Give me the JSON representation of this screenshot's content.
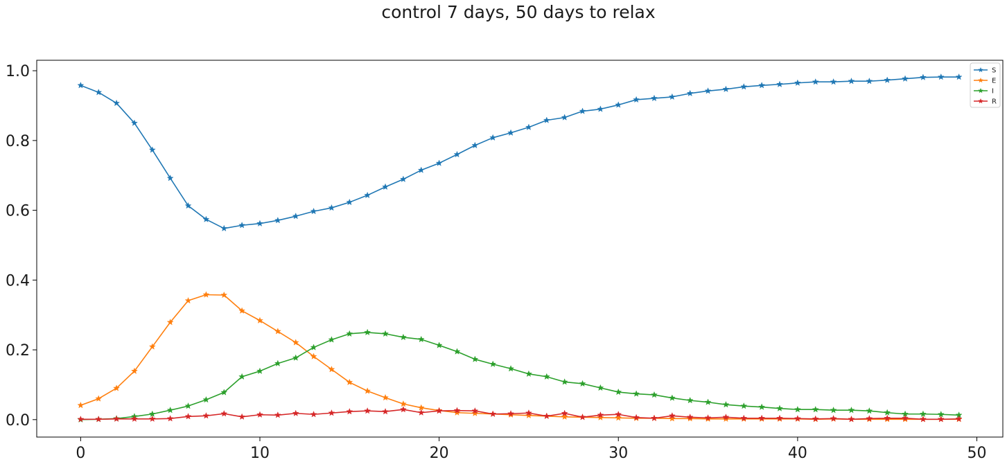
{
  "chart_data": {
    "type": "line",
    "title": "control 7 days, 50 days to relax",
    "xlabel": "",
    "ylabel": "",
    "xlim": [
      -2.45,
      51.45
    ],
    "ylim": [
      -0.05,
      1.03
    ],
    "xticks": [
      0,
      10,
      20,
      30,
      40,
      50
    ],
    "xtick_labels": [
      "0",
      "10",
      "20",
      "30",
      "40",
      "50"
    ],
    "yticks": [
      0.0,
      0.2,
      0.4,
      0.6,
      0.8,
      1.0
    ],
    "ytick_labels": [
      "0.0",
      "0.2",
      "0.4",
      "0.6",
      "0.8",
      "1.0"
    ],
    "grid": false,
    "legend_position": "top-right",
    "marker": "star",
    "x": [
      0,
      1,
      2,
      3,
      4,
      5,
      6,
      7,
      8,
      9,
      10,
      11,
      12,
      13,
      14,
      15,
      16,
      17,
      18,
      19,
      20,
      21,
      22,
      23,
      24,
      25,
      26,
      27,
      28,
      29,
      30,
      31,
      32,
      33,
      34,
      35,
      36,
      37,
      38,
      39,
      40,
      41,
      42,
      43,
      44,
      45,
      46,
      47,
      48,
      49
    ],
    "series": [
      {
        "name": "S",
        "color": "#1f77b4",
        "values": [
          0.958,
          0.938,
          0.907,
          0.85,
          0.773,
          0.692,
          0.613,
          0.574,
          0.548,
          0.557,
          0.562,
          0.571,
          0.583,
          0.597,
          0.607,
          0.623,
          0.643,
          0.667,
          0.689,
          0.715,
          0.735,
          0.76,
          0.786,
          0.808,
          0.822,
          0.838,
          0.858,
          0.866,
          0.884,
          0.89,
          0.902,
          0.917,
          0.921,
          0.925,
          0.935,
          0.942,
          0.947,
          0.954,
          0.958,
          0.961,
          0.965,
          0.968,
          0.968,
          0.97,
          0.97,
          0.973,
          0.977,
          0.981,
          0.982,
          0.982
        ]
      },
      {
        "name": "E",
        "color": "#ff7f0e",
        "values": [
          0.041,
          0.06,
          0.09,
          0.139,
          0.209,
          0.279,
          0.341,
          0.358,
          0.357,
          0.312,
          0.284,
          0.253,
          0.221,
          0.181,
          0.144,
          0.107,
          0.082,
          0.063,
          0.045,
          0.034,
          0.026,
          0.02,
          0.018,
          0.016,
          0.014,
          0.012,
          0.01,
          0.008,
          0.007,
          0.006,
          0.005,
          0.004,
          0.004,
          0.003,
          0.003,
          0.002,
          0.002,
          0.002,
          0.002,
          0.002,
          0.002,
          0.001,
          0.002,
          0.001,
          0.001,
          0.001,
          0.001,
          0.001,
          0.001,
          0.001
        ]
      },
      {
        "name": "I",
        "color": "#2ca02c",
        "values": [
          0.0,
          0.001,
          0.003,
          0.009,
          0.016,
          0.027,
          0.039,
          0.057,
          0.078,
          0.123,
          0.139,
          0.161,
          0.177,
          0.207,
          0.229,
          0.246,
          0.25,
          0.246,
          0.236,
          0.23,
          0.213,
          0.195,
          0.173,
          0.159,
          0.146,
          0.131,
          0.123,
          0.108,
          0.103,
          0.091,
          0.079,
          0.074,
          0.071,
          0.062,
          0.055,
          0.05,
          0.043,
          0.039,
          0.036,
          0.032,
          0.029,
          0.029,
          0.027,
          0.027,
          0.025,
          0.02,
          0.016,
          0.016,
          0.015,
          0.013
        ]
      },
      {
        "name": "R",
        "color": "#d62728",
        "values": [
          0.001,
          0.001,
          0.002,
          0.002,
          0.002,
          0.003,
          0.009,
          0.011,
          0.017,
          0.008,
          0.014,
          0.013,
          0.018,
          0.015,
          0.019,
          0.023,
          0.025,
          0.023,
          0.029,
          0.02,
          0.025,
          0.026,
          0.025,
          0.016,
          0.017,
          0.019,
          0.01,
          0.018,
          0.007,
          0.013,
          0.015,
          0.006,
          0.004,
          0.011,
          0.007,
          0.005,
          0.007,
          0.004,
          0.004,
          0.004,
          0.003,
          0.002,
          0.003,
          0.001,
          0.003,
          0.004,
          0.004,
          0.001,
          0.001,
          0.002
        ]
      }
    ]
  }
}
